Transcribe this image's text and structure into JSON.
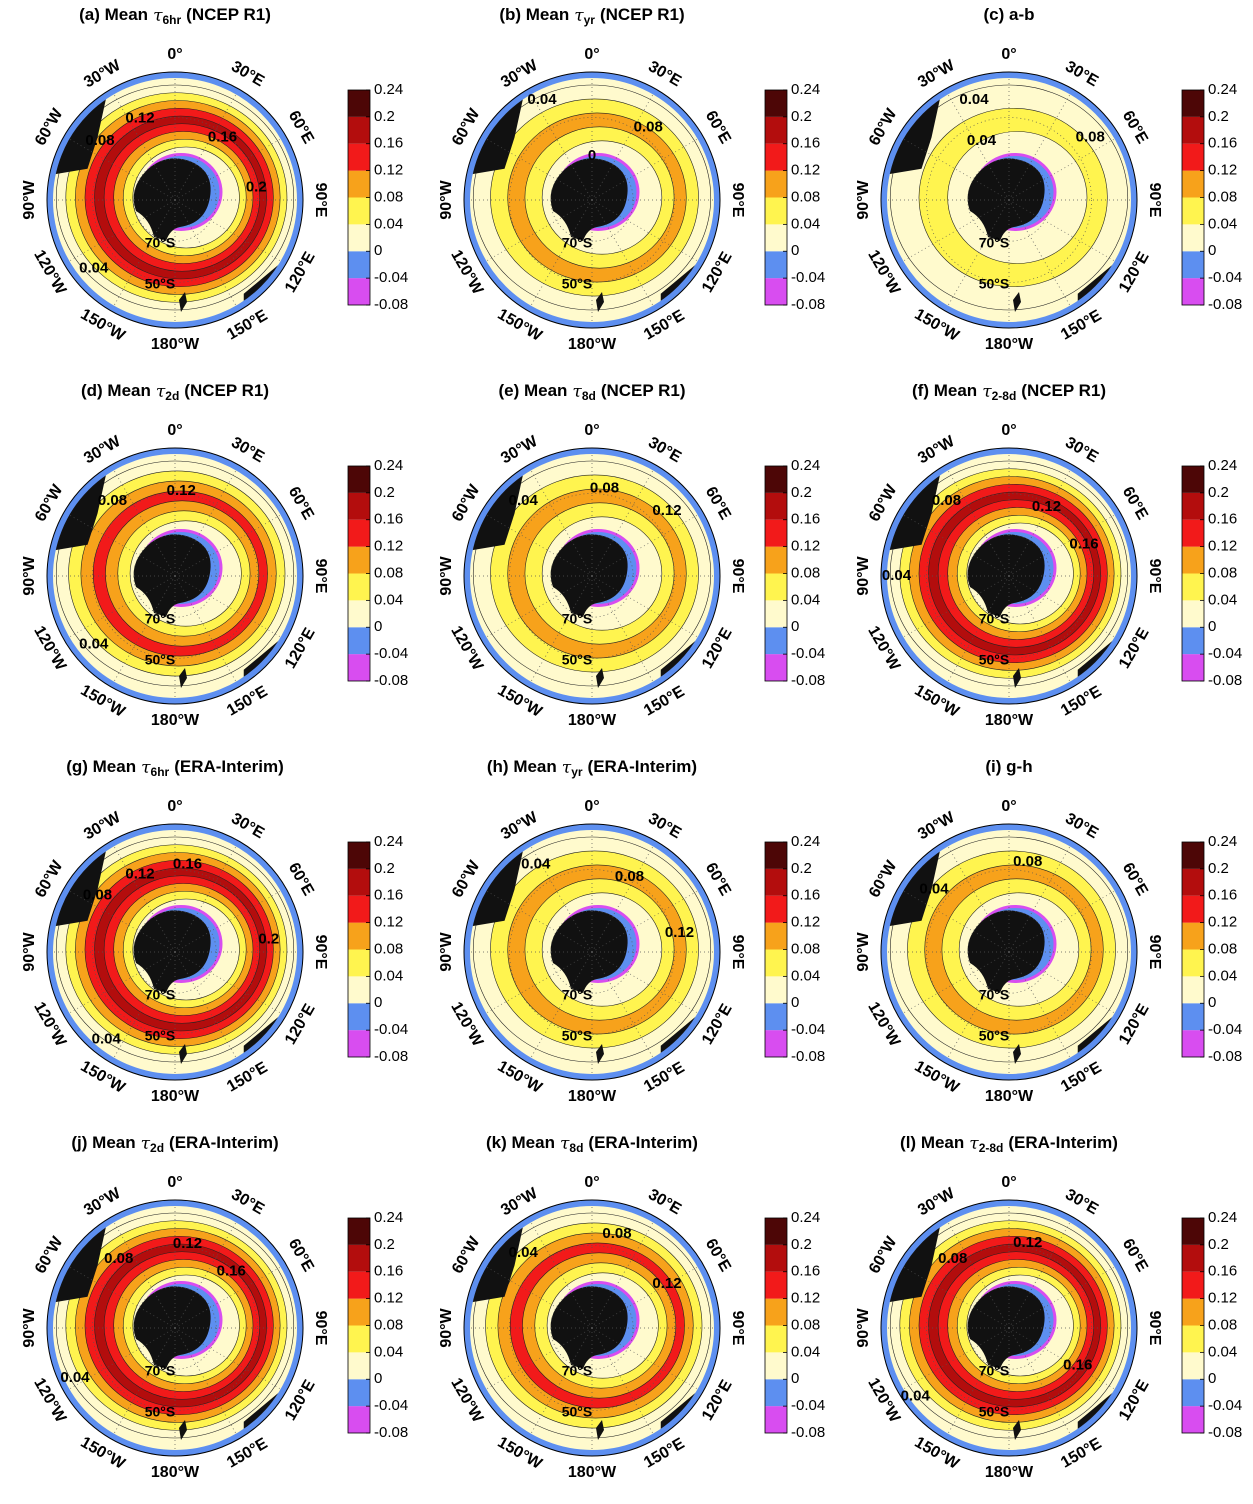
{
  "colorbar": {
    "ticks": [
      -0.08,
      -0.04,
      0,
      0.04,
      0.08,
      0.12,
      0.16,
      0.2,
      0.24
    ],
    "colors": [
      "#d84df0",
      "#5d8ff0",
      "#fffacd",
      "#fff44f",
      "#f7a21b",
      "#f21a1a",
      "#b30d0d",
      "#4d0606"
    ]
  },
  "longitude_labels": [
    "0°",
    "30°E",
    "60°E",
    "90°E",
    "120°E",
    "150°E",
    "180°W",
    "150°W",
    "120°W",
    "90°W",
    "60°W",
    "30°W"
  ],
  "latitude_labels": [
    "70°S",
    "50°S"
  ],
  "panels": [
    {
      "title": {
        "text": "(a) Mean",
        "symbol": "τ",
        "subscript": "6hr",
        "source": "(NCEP R1)"
      },
      "contour_labels": [
        "0.08",
        "0.12",
        "0.16",
        "0.2",
        "0.04"
      ]
    },
    {
      "title": {
        "text": "(b) Mean",
        "symbol": "τ",
        "subscript": "yr",
        "source": "(NCEP R1)"
      },
      "contour_labels": [
        "0.04",
        "0.08",
        "0"
      ]
    },
    {
      "title": {
        "text": "(c) a-b"
      },
      "contour_labels": [
        "0.04",
        "0.04",
        "0.08"
      ]
    },
    {
      "title": {
        "text": "(d) Mean",
        "symbol": "τ",
        "subscript": "2d",
        "source": "(NCEP R1)"
      },
      "contour_labels": [
        "0.08",
        "0.12",
        "0.04"
      ]
    },
    {
      "title": {
        "text": "(e) Mean",
        "symbol": "τ",
        "subscript": "8d",
        "source": "(NCEP R1)"
      },
      "contour_labels": [
        "0.08",
        "0.04",
        "0.12"
      ]
    },
    {
      "title": {
        "text": "(f) Mean",
        "symbol": "τ",
        "subscript": "2-8d",
        "source": "(NCEP R1)"
      },
      "contour_labels": [
        "0.08",
        "0.12",
        "0.16",
        "0.04"
      ]
    },
    {
      "title": {
        "text": "(g) Mean",
        "symbol": "τ",
        "subscript": "6hr",
        "source": "(ERA-Interim)"
      },
      "contour_labels": [
        "0.12",
        "0.16",
        "0.08",
        "0.2",
        "0.04"
      ]
    },
    {
      "title": {
        "text": "(h) Mean",
        "symbol": "τ",
        "subscript": "yr",
        "source": "(ERA-Interim)"
      },
      "contour_labels": [
        "0.04",
        "0.08",
        "0.12"
      ]
    },
    {
      "title": {
        "text": "(i) g-h"
      },
      "contour_labels": [
        "0.08",
        "0.04"
      ]
    },
    {
      "title": {
        "text": "(j) Mean",
        "symbol": "τ",
        "subscript": "2d",
        "source": "(ERA-Interim)"
      },
      "contour_labels": [
        "0.08",
        "0.12",
        "0.16",
        "0.04"
      ]
    },
    {
      "title": {
        "text": "(k) Mean",
        "symbol": "τ",
        "subscript": "8d",
        "source": "(ERA-Interim)"
      },
      "contour_labels": [
        "0.04",
        "0.08",
        "0.12"
      ]
    },
    {
      "title": {
        "text": "(l) Mean",
        "symbol": "τ",
        "subscript": "2-8d",
        "source": "(ERA-Interim)"
      },
      "contour_labels": [
        "0.08",
        "0.12",
        "0.16",
        "0.04"
      ]
    }
  ]
}
